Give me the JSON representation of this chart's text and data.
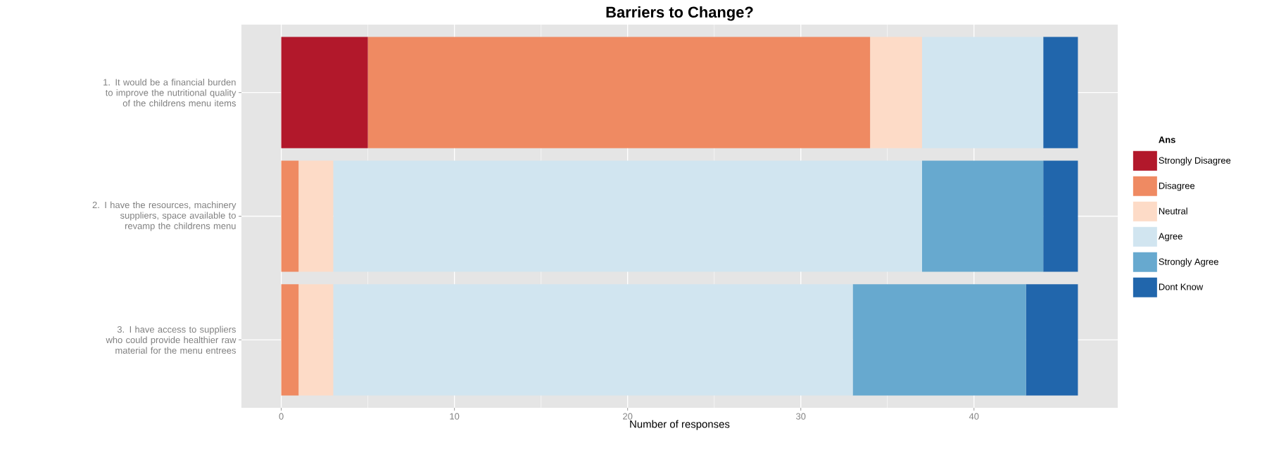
{
  "chart_data": {
    "type": "bar",
    "orientation": "horizontal",
    "stacked": true,
    "title": "Barriers to Change?",
    "xlabel": "Number of responses",
    "legend_title": "Ans",
    "categories": [
      "1. It would be a financial burden to improve the nutritional quality of the childrens menu items",
      "2. I have the resources, machinery suppliers, space available to revamp the childrens menu",
      "3. I have access to suppliers who could provide healthier raw material for the menu entrees"
    ],
    "series": [
      {
        "name": "Strongly Disagree",
        "color": "#b2182b",
        "values": [
          5,
          0,
          0
        ]
      },
      {
        "name": "Disagree",
        "color": "#ef8a62",
        "values": [
          29,
          1,
          1
        ]
      },
      {
        "name": "Neutral",
        "color": "#fddbc7",
        "values": [
          3,
          2,
          2
        ]
      },
      {
        "name": "Agree",
        "color": "#d1e5f0",
        "values": [
          7,
          34,
          30
        ]
      },
      {
        "name": "Strongly Agree",
        "color": "#67a9cf",
        "values": [
          0,
          7,
          10
        ]
      },
      {
        "name": "Dont Know",
        "color": "#2166ac",
        "values": [
          2,
          2,
          3
        ]
      }
    ],
    "xlim": [
      -2.3,
      48.3
    ],
    "xticks": [
      0,
      10,
      20,
      30,
      40
    ],
    "grid": true,
    "legend": "right"
  }
}
